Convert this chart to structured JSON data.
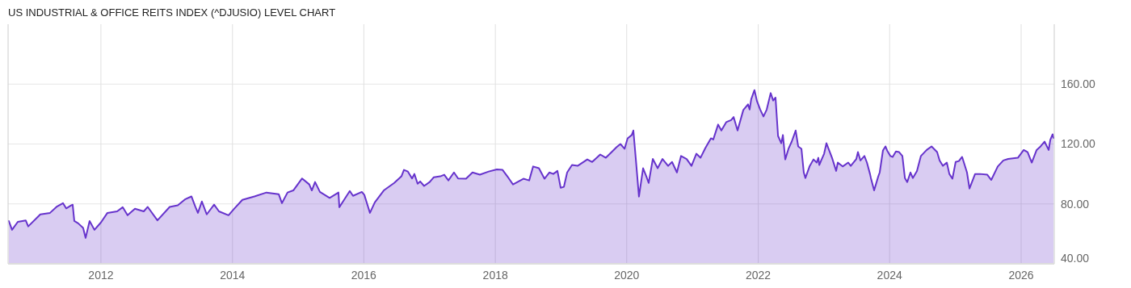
{
  "chart_data": {
    "type": "area",
    "title": "US INDUSTRIAL & OFFICE REITS INDEX (^DJUSIO) LEVEL CHART",
    "xlim": [
      "2010-08-03",
      "2026-07-04"
    ],
    "xticks": [
      "2012",
      "2014",
      "2016",
      "2018",
      "2020",
      "2022",
      "2024",
      "2026"
    ],
    "ylim": [
      40,
      200
    ],
    "yticks": [
      {
        "value": 40,
        "label": "40.00"
      },
      {
        "value": 80,
        "label": "80.00"
      },
      {
        "value": 120,
        "label": "120.00"
      },
      {
        "value": 160,
        "label": "160.00"
      }
    ],
    "grid": true,
    "series": [
      {
        "color": "#6633cc",
        "x": [
          "2010-08-07",
          "2010-08-25",
          "2010-09-26",
          "2010-11-09",
          "2010-11-23",
          "2011-01-29",
          "2011-03-24",
          "2011-04-29",
          "2011-06-04",
          "2011-06-22",
          "2011-07-19",
          "2011-07-28",
          "2011-08-06",
          "2011-08-28",
          "2011-09-24",
          "2011-10-08",
          "2011-10-30",
          "2011-11-26",
          "2012-01-01",
          "2012-02-06",
          "2012-03-31",
          "2012-05-01",
          "2012-05-28",
          "2012-07-08",
          "2012-08-26",
          "2012-09-17",
          "2012-11-10",
          "2013-01-17",
          "2013-03-03",
          "2013-04-12",
          "2013-05-18",
          "2013-06-09",
          "2013-06-23",
          "2013-07-15",
          "2013-08-11",
          "2013-09-21",
          "2013-10-18",
          "2013-12-10",
          "2014-01-11",
          "2014-02-25",
          "2014-05-03",
          "2014-07-09",
          "2014-09-15",
          "2014-10-03",
          "2014-11-03",
          "2014-12-05",
          "2015-01-23",
          "2015-03-04",
          "2015-03-18",
          "2015-04-05",
          "2015-05-02",
          "2015-06-25",
          "2015-08-13",
          "2015-08-18",
          "2015-10-15",
          "2015-11-02",
          "2015-12-21",
          "2016-01-04",
          "2016-02-04",
          "2016-03-02",
          "2016-04-21",
          "2016-06-18",
          "2016-07-28",
          "2016-08-11",
          "2016-09-02",
          "2016-09-25",
          "2016-10-08",
          "2016-10-26",
          "2016-11-09",
          "2016-12-01",
          "2017-01-01",
          "2017-01-24",
          "2017-03-01",
          "2017-03-23",
          "2017-04-15",
          "2017-05-16",
          "2017-06-08",
          "2017-07-22",
          "2017-08-27",
          "2017-10-07",
          "2017-11-25",
          "2018-01-09",
          "2018-02-10",
          "2018-03-17",
          "2018-04-09",
          "2018-06-06",
          "2018-07-08",
          "2018-07-30",
          "2018-08-31",
          "2018-10-01",
          "2018-10-28",
          "2018-11-19",
          "2018-12-12",
          "2018-12-30",
          "2019-01-17",
          "2019-02-04",
          "2019-03-03",
          "2019-04-03",
          "2019-05-27",
          "2019-06-23",
          "2019-08-07",
          "2019-09-07",
          "2019-10-09",
          "2019-11-05",
          "2019-11-27",
          "2019-12-20",
          "2020-01-06",
          "2020-01-29",
          "2020-02-07",
          "2020-02-20",
          "2020-03-09",
          "2020-04-01",
          "2020-04-19",
          "2020-05-02",
          "2020-05-25",
          "2020-06-21",
          "2020-07-18",
          "2020-08-18",
          "2020-09-09",
          "2020-10-06",
          "2020-10-29",
          "2020-11-29",
          "2020-12-26",
          "2021-01-22",
          "2021-02-14",
          "2021-03-13",
          "2021-04-13",
          "2021-04-26",
          "2021-05-23",
          "2021-06-10",
          "2021-07-07",
          "2021-08-03",
          "2021-08-17",
          "2021-09-08",
          "2021-10-10",
          "2021-11-05",
          "2021-11-14",
          "2021-11-23",
          "2021-12-11",
          "2021-12-25",
          "2022-01-12",
          "2022-01-30",
          "2022-02-17",
          "2022-03-11",
          "2022-03-25",
          "2022-04-07",
          "2022-04-21",
          "2022-05-09",
          "2022-05-18",
          "2022-05-31",
          "2022-06-18",
          "2022-07-06",
          "2022-07-28",
          "2022-08-11",
          "2022-08-29",
          "2022-09-11",
          "2022-09-20",
          "2022-10-13",
          "2022-11-04",
          "2022-11-22",
          "2022-12-01",
          "2022-12-06",
          "2023-01-02",
          "2023-01-15",
          "2023-02-15",
          "2023-03-10",
          "2023-03-19",
          "2023-04-15",
          "2023-05-16",
          "2023-05-30",
          "2023-06-30",
          "2023-07-09",
          "2023-07-23",
          "2023-08-14",
          "2023-08-28",
          "2023-09-14",
          "2023-09-19",
          "2023-10-07",
          "2023-10-30",
          "2023-11-07",
          "2023-11-25",
          "2023-12-09",
          "2023-12-18",
          "2024-01-05",
          "2024-01-18",
          "2024-02-05",
          "2024-02-23",
          "2024-03-12",
          "2024-03-26",
          "2024-04-08",
          "2024-04-26",
          "2024-05-09",
          "2024-06-01",
          "2024-06-23",
          "2024-07-25",
          "2024-08-21",
          "2024-09-21",
          "2024-10-05",
          "2024-10-23",
          "2024-11-14",
          "2024-11-28",
          "2024-12-15",
          "2025-01-02",
          "2025-01-20",
          "2025-02-07",
          "2025-03-06",
          "2025-03-20",
          "2025-04-20",
          "2025-05-17",
          "2025-06-27",
          "2025-07-19",
          "2025-08-24",
          "2025-09-24",
          "2025-10-21",
          "2025-12-14",
          "2026-01-15",
          "2026-02-06",
          "2026-03-01",
          "2026-03-28",
          "2026-04-19",
          "2026-05-11",
          "2026-06-03",
          "2026-06-12",
          "2026-06-25",
          "2026-06-30"
        ],
        "values": [
          68.6,
          62.7,
          68,
          69,
          65,
          73,
          74,
          78,
          80.5,
          77,
          79,
          79.5,
          68.6,
          67,
          64,
          57.3,
          68.6,
          62.7,
          67.6,
          74,
          75,
          77.8,
          72.4,
          76.8,
          75,
          78,
          69,
          78,
          79,
          83,
          85,
          78,
          74,
          81.6,
          73,
          79.5,
          75,
          72.4,
          76.8,
          82.7,
          85,
          87.6,
          86.5,
          80.5,
          87.6,
          89,
          97,
          93,
          89,
          94.6,
          88,
          84,
          87.6,
          77.8,
          88.6,
          85.4,
          88,
          86,
          74,
          81,
          89,
          94,
          98.4,
          102.7,
          101.6,
          97,
          100,
          93.5,
          95,
          92,
          94.6,
          97.8,
          98.4,
          99.5,
          95.7,
          101,
          97,
          96.8,
          101,
          99.5,
          101.6,
          103,
          102.7,
          97,
          93,
          96.8,
          95.7,
          105,
          103.8,
          96.8,
          101,
          100,
          102,
          90.8,
          91.4,
          101,
          106,
          105.4,
          109.7,
          108,
          113,
          110.8,
          114.6,
          117.8,
          120,
          116.8,
          123.8,
          126,
          129,
          110.8,
          84.9,
          103.8,
          98.4,
          94,
          110,
          103.8,
          110,
          105.4,
          108,
          101,
          112,
          110,
          105.4,
          113.5,
          110.8,
          117.3,
          123.8,
          123,
          133,
          129,
          134.6,
          136,
          138,
          129,
          142.7,
          146.5,
          143,
          150,
          156,
          148.6,
          143,
          138.4,
          143,
          154,
          149,
          151,
          125.4,
          120.5,
          126,
          109.7,
          116.8,
          121.6,
          129,
          118.4,
          116.8,
          101,
          97.3,
          105,
          109.7,
          107.6,
          110.8,
          106,
          113.5,
          120.5,
          110.8,
          102,
          107.6,
          105,
          107.6,
          105.4,
          110,
          114.6,
          109,
          112,
          107.6,
          100,
          97.3,
          89,
          98.4,
          101,
          115.7,
          118.4,
          115.7,
          112,
          111.4,
          115,
          114.6,
          112,
          97.3,
          94.6,
          101,
          97.3,
          102,
          112,
          116,
          118.4,
          114.6,
          109,
          105.4,
          107.6,
          100,
          96.8,
          108,
          108.6,
          111.4,
          101,
          90.3,
          100,
          100,
          99.5,
          96,
          105,
          109,
          110,
          110.8,
          116,
          114.6,
          107.6,
          116,
          118.4,
          121.6,
          116,
          122.7,
          126.5,
          124
        ]
      }
    ]
  }
}
